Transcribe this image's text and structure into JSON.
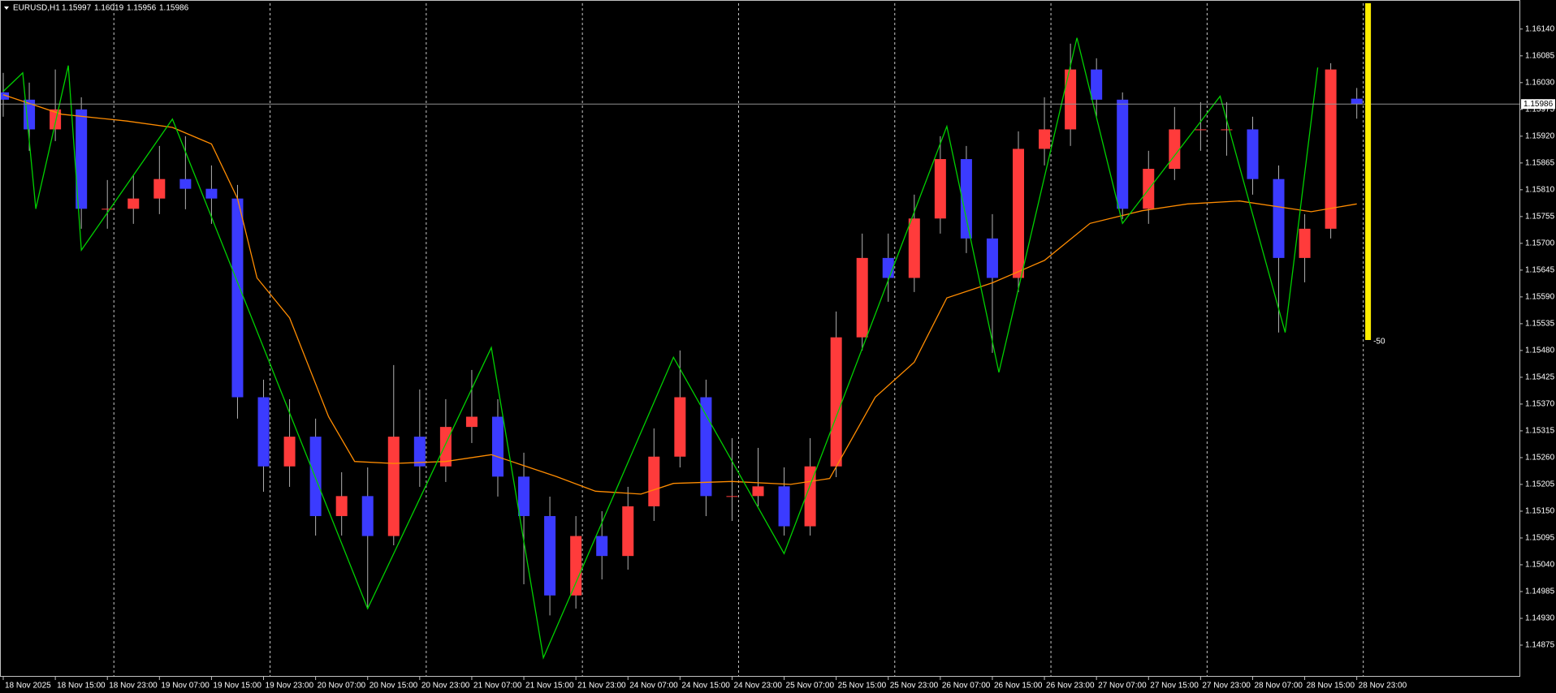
{
  "chart_data": {
    "type": "candlestick",
    "symbol": "EURUSD,H1",
    "x": [
      0,
      4,
      8,
      12,
      16,
      20,
      24,
      28,
      32,
      36,
      40,
      44,
      48,
      52,
      56,
      60,
      64,
      68,
      72,
      76,
      80,
      84,
      88,
      92,
      96,
      100,
      104,
      108,
      112,
      116,
      120,
      124,
      128,
      132,
      136,
      140,
      144,
      148,
      152,
      156,
      160,
      164,
      168,
      172,
      176,
      180,
      184,
      188,
      192,
      196,
      200,
      204,
      208
    ],
    "open": [
      1.1601,
      1.15995,
      1.15934,
      1.15975,
      1.15771,
      1.15771,
      1.15792,
      1.15832,
      1.15812,
      1.15792,
      1.15384,
      1.15242,
      1.15303,
      1.1514,
      1.15181,
      1.15099,
      1.15303,
      1.15242,
      1.15323,
      1.15344,
      1.15221,
      1.1514,
      1.14977,
      1.15099,
      1.15058,
      1.1516,
      1.15262,
      1.15384,
      1.15181,
      1.15181,
      1.15201,
      1.15119,
      1.15242,
      1.15507,
      1.1567,
      1.15629,
      1.15751,
      1.15873,
      1.1571,
      1.15629,
      1.15894,
      1.15934,
      1.16057,
      1.15995,
      1.15771,
      1.15853,
      1.15934,
      1.15934,
      1.15934,
      1.15832,
      1.1567,
      1.1573,
      1.15997
    ],
    "high": [
      1.1605,
      1.1603,
      1.16057,
      1.16,
      1.1583,
      1.1584,
      1.159,
      1.1592,
      1.1586,
      1.1582,
      1.1542,
      1.1538,
      1.1534,
      1.1523,
      1.1524,
      1.1545,
      1.154,
      1.1538,
      1.1544,
      1.1538,
      1.1527,
      1.1518,
      1.1514,
      1.1515,
      1.152,
      1.1532,
      1.1548,
      1.1542,
      1.153,
      1.1528,
      1.1524,
      1.153,
      1.1556,
      1.1572,
      1.1572,
      1.158,
      1.1592,
      1.159,
      1.1576,
      1.1593,
      1.16,
      1.1611,
      1.1608,
      1.1601,
      1.1589,
      1.1598,
      1.1599,
      1.1599,
      1.1596,
      1.1586,
      1.1576,
      1.1607,
      1.16019
    ],
    "low": [
      1.1596,
      1.1589,
      1.1591,
      1.1573,
      1.1573,
      1.1574,
      1.1576,
      1.1577,
      1.1574,
      1.1534,
      1.1519,
      1.152,
      1.151,
      1.151,
      1.14952,
      1.1508,
      1.152,
      1.1521,
      1.1529,
      1.1518,
      1.15,
      1.14936,
      1.1495,
      1.1501,
      1.1503,
      1.1513,
      1.1524,
      1.1514,
      1.1513,
      1.1516,
      1.151,
      1.151,
      1.1522,
      1.1548,
      1.1558,
      1.156,
      1.1572,
      1.1568,
      1.15475,
      1.156,
      1.1586,
      1.159,
      1.1596,
      1.1575,
      1.1574,
      1.1583,
      1.1589,
      1.1588,
      1.158,
      1.15517,
      1.1562,
      1.1571,
      1.15956
    ],
    "close": [
      1.15995,
      1.15934,
      1.15975,
      1.15771,
      1.15771,
      1.15792,
      1.15832,
      1.15812,
      1.15792,
      1.15384,
      1.15242,
      1.15303,
      1.1514,
      1.15181,
      1.15099,
      1.15303,
      1.15242,
      1.15323,
      1.15344,
      1.15221,
      1.1514,
      1.14977,
      1.15099,
      1.15058,
      1.1516,
      1.15262,
      1.15384,
      1.15181,
      1.15181,
      1.15201,
      1.15119,
      1.15242,
      1.15507,
      1.1567,
      1.15629,
      1.15751,
      1.15873,
      1.1571,
      1.15629,
      1.15894,
      1.15934,
      1.16057,
      1.15995,
      1.15771,
      1.15853,
      1.15934,
      1.15934,
      1.15934,
      1.15832,
      1.1567,
      1.1573,
      1.16057,
      1.15986
    ],
    "up_color": "#ff3b3b",
    "down_color": "#3b3bff",
    "wick_color": "#b0b0b0",
    "zigzag": {
      "color": "#00d000",
      "x": [
        0,
        3,
        5,
        10,
        12,
        26,
        56,
        75,
        83,
        103,
        120,
        145,
        153,
        165,
        172,
        187,
        197,
        202
      ],
      "values": [
        1.16012,
        1.1605,
        1.15771,
        1.16065,
        1.15686,
        1.15955,
        1.1495,
        1.15486,
        1.14849,
        1.15466,
        1.15063,
        1.1594,
        1.15435,
        1.16122,
        1.15741,
        1.16002,
        1.15517,
        1.16061
      ]
    },
    "moving_average": {
      "color": "#ff8c00",
      "x": [
        0,
        9,
        19,
        26,
        32,
        36,
        39,
        44,
        50,
        54,
        60,
        68,
        75,
        85,
        91,
        98,
        103,
        112,
        121,
        127,
        134,
        140,
        145,
        152,
        160,
        167,
        175,
        182,
        190,
        196,
        201,
        208
      ],
      "values": [
        1.16005,
        1.15965,
        1.15951,
        1.15938,
        1.15904,
        1.15792,
        1.15629,
        1.15547,
        1.15344,
        1.15252,
        1.15248,
        1.15252,
        1.15266,
        1.15221,
        1.15191,
        1.15185,
        1.15207,
        1.15211,
        1.15205,
        1.15217,
        1.15384,
        1.15456,
        1.15588,
        1.15619,
        1.15665,
        1.15741,
        1.15767,
        1.15781,
        1.15787,
        1.15775,
        1.15765,
        1.15781
      ]
    },
    "price_line": 1.15986,
    "indicator": {
      "value": -50,
      "lim": [
        0,
        -100
      ],
      "color": "#ffee00"
    },
    "separators": [
      17,
      41,
      65,
      89,
      113,
      137,
      161,
      185,
      209
    ],
    "xlim": [
      -0.5,
      233
    ],
    "xticks": [
      {
        "value": 0,
        "label": "18 Nov 2025"
      },
      {
        "value": 8,
        "label": "18 Nov 15:00"
      },
      {
        "value": 16,
        "label": "18 Nov 23:00"
      },
      {
        "value": 24,
        "label": "19 Nov 07:00"
      },
      {
        "value": 32,
        "label": "19 Nov 15:00"
      },
      {
        "value": 40,
        "label": "19 Nov 23:00"
      },
      {
        "value": 48,
        "label": "20 Nov 07:00"
      },
      {
        "value": 56,
        "label": "20 Nov 15:00"
      },
      {
        "value": 64,
        "label": "20 Nov 23:00"
      },
      {
        "value": 72,
        "label": "21 Nov 07:00"
      },
      {
        "value": 80,
        "label": "21 Nov 15:00"
      },
      {
        "value": 88,
        "label": "21 Nov 23:00"
      },
      {
        "value": 96,
        "label": "24 Nov 07:00"
      },
      {
        "value": 104,
        "label": "24 Nov 15:00"
      },
      {
        "value": 112,
        "label": "24 Nov 23:00"
      },
      {
        "value": 120,
        "label": "25 Nov 07:00"
      },
      {
        "value": 128,
        "label": "25 Nov 15:00"
      },
      {
        "value": 136,
        "label": "25 Nov 23:00"
      },
      {
        "value": 144,
        "label": "26 Nov 07:00"
      },
      {
        "value": 152,
        "label": "26 Nov 15:00"
      },
      {
        "value": 160,
        "label": "26 Nov 23:00"
      },
      {
        "value": 168,
        "label": "27 Nov 07:00"
      },
      {
        "value": 176,
        "label": "27 Nov 15:00"
      },
      {
        "value": 184,
        "label": "27 Nov 23:00"
      },
      {
        "value": 192,
        "label": "28 Nov 07:00"
      },
      {
        "value": 200,
        "label": "28 Nov 15:00"
      },
      {
        "value": 208,
        "label": "28 Nov 23:00"
      }
    ],
    "ylim": [
      1.1481,
      1.16193
    ],
    "yticks": [
      {
        "value": 1.1614,
        "label": "1.16140"
      },
      1.16085,
      {
        "value": 1.1603,
        "label": "1.16030"
      },
      1.15975,
      {
        "value": 1.1592,
        "label": "1.15920"
      },
      1.15865,
      {
        "value": 1.1581,
        "label": "1.15810"
      },
      1.15755,
      {
        "value": 1.157,
        "label": "1.15700"
      },
      1.15645,
      {
        "value": 1.1559,
        "label": "1.15590"
      },
      1.15535,
      {
        "value": 1.1548,
        "label": "1.15480"
      },
      1.15425,
      {
        "value": 1.1537,
        "label": "1.15370"
      },
      1.15315,
      {
        "value": 1.1526,
        "label": "1.15260"
      },
      1.15205,
      {
        "value": 1.1515,
        "label": "1.15150"
      },
      1.15095,
      {
        "value": 1.1504,
        "label": "1.15040"
      },
      1.14985,
      {
        "value": 1.1493,
        "label": "1.14930"
      },
      1.14875
    ]
  }
}
